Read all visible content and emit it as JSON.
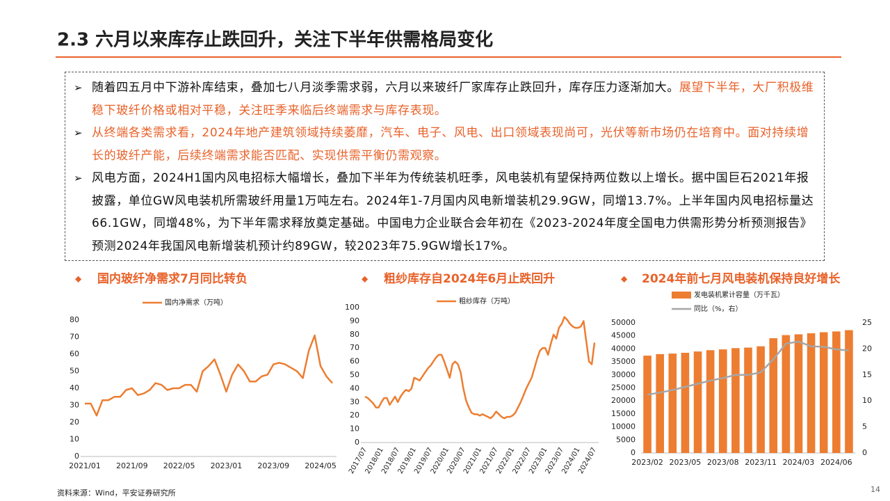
{
  "header": {
    "title": "2.3 六月以来库存止跌回升，关注下半年供需格局变化"
  },
  "bullets": [
    {
      "text": "随着四五月中下游补库结束，叠加七八月淡季需求弱，六月以来玻纤厂家库存止跌回升，库存压力逐渐加大。",
      "highlight": "展望下半年，大厂积极维稳下玻纤价格或相对平稳，关注旺季来临后终端需求与库存表现。"
    },
    {
      "highlight": "从终端各类需求看，2024年地产建筑领域持续萎靡，汽车、电子、风电、出口领域表现尚可，光伏等新市场仍在培育中。面对持续增长的玻纤产能，后续终端需求能否匹配、实现供需平衡仍需观察。"
    },
    {
      "text": "风电方面，2024H1国内风电招标大幅增长，叠加下半年为传统装机旺季，风电装机有望保持两位数以上增长。据中国巨石2021年报披露，单位GW风电装机所需玻纤用量1万吨左右。2024年1-7月国内风电新增装机29.9GW，同增13.7%。上半年国内风电招标量达66.1GW，同增48%，为下半年需求释放奠定基础。中国电力企业联合会年初在《2023-2024年度全国电力供需形势分析预测报告》预测2024年我国风电新增装机预计约89GW，较2023年75.9GW增长17%。"
    }
  ],
  "chart_data": [
    {
      "type": "line",
      "title": "国内玻纤净需求7月同比转负",
      "categories": [
        "2021/01",
        null,
        null,
        null,
        null,
        null,
        null,
        null,
        "2021/09",
        null,
        null,
        null,
        null,
        null,
        null,
        null,
        "2022/05",
        null,
        null,
        null,
        null,
        null,
        null,
        null,
        "2023/01",
        null,
        null,
        null,
        null,
        null,
        null,
        null,
        "2023/09",
        null,
        null,
        null,
        null,
        null,
        null,
        null,
        "2024/05",
        null,
        null
      ],
      "series": [
        {
          "name": "国内净需求（万吨）",
          "color": "#ed7d31",
          "values": [
            31,
            31,
            24,
            33,
            33,
            35,
            35,
            39,
            40,
            36,
            37,
            39,
            43,
            42,
            39,
            40,
            40,
            42,
            42,
            38,
            50,
            53,
            57,
            48,
            38,
            48,
            54,
            50,
            44,
            44,
            47,
            48,
            54,
            55,
            54,
            52,
            50,
            46,
            62,
            71,
            53,
            47,
            43
          ]
        }
      ],
      "ylim": [
        0,
        80
      ],
      "yticks": [
        0,
        10,
        20,
        30,
        40,
        50,
        60,
        70,
        80
      ]
    },
    {
      "type": "line",
      "title": "粗纱库存自2024年6月止跌回升",
      "categories": [
        "2017/07",
        null,
        null,
        null,
        null,
        null,
        "2018/01",
        null,
        null,
        null,
        null,
        null,
        "2018/07",
        null,
        null,
        null,
        null,
        null,
        "2019/01",
        null,
        null,
        null,
        null,
        null,
        "2019/07",
        null,
        null,
        null,
        null,
        null,
        "2020/01",
        null,
        null,
        null,
        null,
        null,
        "2020/07",
        null,
        null,
        null,
        null,
        null,
        "2021/01",
        null,
        null,
        null,
        null,
        null,
        "2021/07",
        null,
        null,
        null,
        null,
        null,
        "2022/01",
        null,
        null,
        null,
        null,
        null,
        "2022/07",
        null,
        null,
        null,
        null,
        null,
        "2023/01",
        null,
        null,
        null,
        null,
        null,
        "2023/07",
        null,
        null,
        null,
        null,
        null,
        "2024/01",
        null,
        null,
        null,
        null,
        null,
        "2024/07"
      ],
      "series": [
        {
          "name": "粗纱库存（万吨）",
          "color": "#ed7d31",
          "values": [
            34,
            33,
            31,
            29,
            26,
            26,
            30,
            33,
            33,
            28,
            31,
            34,
            30,
            34,
            37,
            39,
            38,
            40,
            48,
            47,
            46,
            49,
            52,
            55,
            57,
            60,
            63,
            65,
            65,
            60,
            54,
            48,
            58,
            60,
            58,
            52,
            40,
            31,
            26,
            22,
            21,
            21,
            20,
            21,
            20,
            19,
            18,
            20,
            23,
            21,
            19,
            18,
            19,
            19,
            20,
            22,
            26,
            30,
            35,
            40,
            44,
            48,
            55,
            62,
            68,
            70,
            70,
            65,
            73,
            80,
            77,
            85,
            88,
            93,
            91,
            88,
            86,
            85,
            85,
            86,
            90,
            75,
            60,
            58,
            74
          ]
        }
      ],
      "ylim": [
        0,
        100
      ],
      "yticks": [
        0,
        10,
        20,
        30,
        40,
        50,
        60,
        70,
        80,
        90,
        100
      ]
    },
    {
      "type": "bar",
      "title": "2024年前七月风电装机保持良好增长",
      "categories": [
        "2023/02",
        null,
        null,
        "2023/05",
        null,
        null,
        "2023/08",
        null,
        null,
        "2023/11",
        null,
        null,
        "2024/03",
        null,
        null,
        "2024/06",
        null
      ],
      "series": [
        {
          "name": "发电装机累计容量（万千瓦）",
          "color": "#ed7d31",
          "values": [
            37400,
            38000,
            38200,
            38500,
            39000,
            39500,
            39800,
            40300,
            40500,
            41000,
            44100,
            45300,
            45600,
            46000,
            46400,
            46700,
            47200
          ]
        },
        {
          "name": "同比（%，右）",
          "color": "#a6a6a6",
          "type": "line",
          "axis": "y2",
          "values": [
            11.2,
            11.6,
            12.1,
            12.7,
            13.3,
            13.9,
            14.4,
            15,
            15,
            15.5,
            18,
            21,
            21.4,
            20.5,
            20.4,
            19.9,
            19.7
          ]
        }
      ],
      "ylim": [
        0,
        50000
      ],
      "yticks": [
        0,
        5000,
        10000,
        15000,
        20000,
        25000,
        30000,
        35000,
        40000,
        45000,
        50000
      ],
      "y2lim": [
        0,
        25
      ],
      "y2ticks": [
        0,
        5,
        10,
        15,
        20,
        25
      ]
    }
  ],
  "footer": {
    "source": "资料来源：Wind，平安证券研究所",
    "page": "14"
  }
}
